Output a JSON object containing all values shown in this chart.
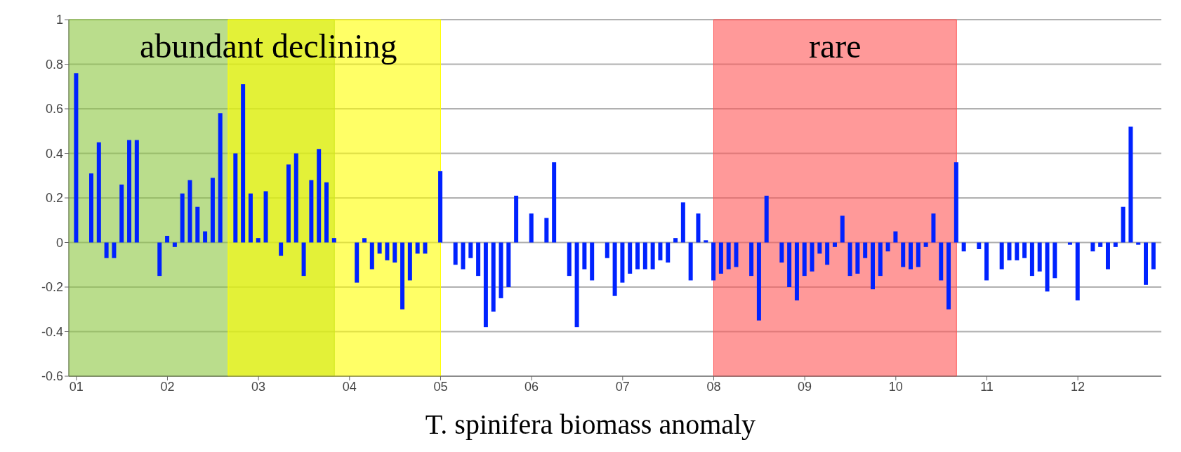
{
  "chart_data": {
    "type": "bar",
    "x": [
      "2001-01",
      "2001-02",
      "2001-03",
      "2001-04",
      "2001-05",
      "2001-06",
      "2001-07",
      "2001-08",
      "2001-09",
      "2001-10",
      "2001-11",
      "2001-12",
      "2002-01",
      "2002-02",
      "2002-03",
      "2002-04",
      "2002-05",
      "2002-06",
      "2002-07",
      "2002-08",
      "2002-09",
      "2002-10",
      "2002-11",
      "2002-12",
      "2003-01",
      "2003-02",
      "2003-03",
      "2003-04",
      "2003-05",
      "2003-06",
      "2003-07",
      "2003-08",
      "2003-09",
      "2003-10",
      "2003-11",
      "2003-12",
      "2004-01",
      "2004-02",
      "2004-03",
      "2004-04",
      "2004-05",
      "2004-06",
      "2004-07",
      "2004-08",
      "2004-09",
      "2004-10",
      "2004-11",
      "2004-12",
      "2005-01",
      "2005-02",
      "2005-03",
      "2005-04",
      "2005-05",
      "2005-06",
      "2005-07",
      "2005-08",
      "2005-09",
      "2005-10",
      "2005-11",
      "2005-12",
      "2006-01",
      "2006-02",
      "2006-03",
      "2006-04",
      "2006-05",
      "2006-06",
      "2006-07",
      "2006-08",
      "2006-09",
      "2006-10",
      "2006-11",
      "2006-12",
      "2007-01",
      "2007-02",
      "2007-03",
      "2007-04",
      "2007-05",
      "2007-06",
      "2007-07",
      "2007-08",
      "2007-09",
      "2007-10",
      "2007-11",
      "2007-12",
      "2008-01",
      "2008-02",
      "2008-03",
      "2008-04",
      "2008-05",
      "2008-06",
      "2008-07",
      "2008-08",
      "2008-09",
      "2008-10",
      "2008-11",
      "2008-12",
      "2009-01",
      "2009-02",
      "2009-03",
      "2009-04",
      "2009-05",
      "2009-06",
      "2009-07",
      "2009-08",
      "2009-09",
      "2009-10",
      "2009-11",
      "2009-12",
      "2010-01",
      "2010-02",
      "2010-03",
      "2010-04",
      "2010-05",
      "2010-06",
      "2010-07",
      "2010-08",
      "2010-09",
      "2010-10",
      "2010-11",
      "2010-12",
      "2011-01",
      "2011-02",
      "2011-03",
      "2011-04",
      "2011-05",
      "2011-06",
      "2011-07",
      "2011-08",
      "2011-09",
      "2011-10",
      "2011-11",
      "2011-12",
      "2012-01",
      "2012-02",
      "2012-03",
      "2012-04",
      "2012-05",
      "2012-06",
      "2012-07",
      "2012-08",
      "2012-09",
      "2012-10",
      "2012-11"
    ],
    "values": [
      0.76,
      0,
      0.31,
      0.45,
      -0.07,
      -0.07,
      0.26,
      0.46,
      0.46,
      0,
      0,
      -0.15,
      0.03,
      -0.02,
      0.22,
      0.28,
      0.16,
      0.05,
      0.29,
      0.58,
      0,
      0.4,
      0.71,
      0.22,
      0.02,
      0.23,
      0,
      -0.06,
      0.35,
      0.4,
      -0.15,
      0.28,
      0.42,
      0.27,
      0.02,
      0,
      0,
      -0.18,
      0.02,
      -0.12,
      -0.05,
      -0.08,
      -0.09,
      -0.3,
      -0.17,
      -0.05,
      -0.05,
      0,
      0.32,
      0,
      -0.1,
      -0.12,
      -0.07,
      -0.15,
      -0.38,
      -0.31,
      -0.25,
      -0.2,
      0.21,
      0,
      0.13,
      0,
      0.11,
      0.36,
      0,
      -0.15,
      -0.38,
      -0.12,
      -0.17,
      0,
      -0.07,
      -0.24,
      -0.18,
      -0.14,
      -0.12,
      -0.12,
      -0.12,
      -0.08,
      -0.09,
      0.02,
      0.18,
      -0.17,
      0.13,
      0.01,
      -0.17,
      -0.14,
      -0.12,
      -0.11,
      0,
      -0.15,
      -0.35,
      0.21,
      0,
      -0.09,
      -0.2,
      -0.26,
      -0.15,
      -0.13,
      -0.05,
      -0.1,
      -0.02,
      0.12,
      -0.15,
      -0.14,
      -0.07,
      -0.21,
      -0.15,
      -0.04,
      0.05,
      -0.11,
      -0.12,
      -0.11,
      -0.02,
      0.13,
      -0.17,
      -0.3,
      0.36,
      -0.04,
      0,
      -0.03,
      -0.17,
      0,
      -0.12,
      -0.08,
      -0.08,
      -0.07,
      -0.15,
      -0.13,
      -0.22,
      -0.16,
      0,
      -0.01,
      -0.26,
      0,
      -0.04,
      -0.02,
      -0.12,
      -0.02,
      0.16,
      0.52,
      -0.01,
      -0.19,
      -0.12
    ],
    "color": "#0022ff",
    "xlim": [
      "2000-12",
      "2012-12"
    ],
    "xticks": [
      {
        "value": "2001-01",
        "label": "01"
      },
      {
        "value": "2002-01",
        "label": "02"
      },
      {
        "value": "2003-01",
        "label": "03"
      },
      {
        "value": "2004-01",
        "label": "04"
      },
      {
        "value": "2005-01",
        "label": "05"
      },
      {
        "value": "2006-01",
        "label": "06"
      },
      {
        "value": "2007-01",
        "label": "07"
      },
      {
        "value": "2008-01",
        "label": "08"
      },
      {
        "value": "2009-01",
        "label": "09"
      },
      {
        "value": "2010-01",
        "label": "10"
      },
      {
        "value": "2011-01",
        "label": "11"
      },
      {
        "value": "2012-01",
        "label": "12"
      }
    ],
    "ylim": [
      -0.6,
      1
    ],
    "yticks": [
      -0.6,
      -0.4,
      -0.2,
      0,
      0.2,
      0.4,
      0.6,
      0.8,
      1
    ],
    "grid": "y",
    "bands": [
      {
        "axis": "x",
        "from": "2000-12",
        "to": "2003-11",
        "label": "abundant",
        "color": "#8cc63f"
      },
      {
        "axis": "x",
        "from": "2002-09",
        "to": "2005-01",
        "label": "declining",
        "color": "#ffff00"
      },
      {
        "axis": "x",
        "from": "2008-01",
        "to": "2010-09",
        "label": "rare",
        "color": "#ff5555"
      }
    ],
    "annotations": [
      "T. spinifera biomass anomaly"
    ]
  }
}
